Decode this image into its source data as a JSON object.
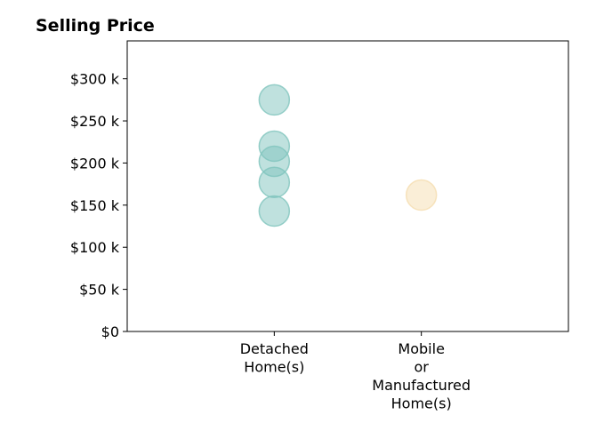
{
  "chart_data": {
    "type": "scatter",
    "title": "Selling Price",
    "xlabel": "",
    "ylabel": "",
    "categories": [
      [
        "Detached",
        "Home(s)"
      ],
      [
        "Mobile",
        "or",
        "Manufactured",
        "Home(s)"
      ]
    ],
    "y_ticks": [
      0,
      50000,
      100000,
      150000,
      200000,
      250000,
      300000
    ],
    "y_tick_labels": [
      "$0",
      "$50 k",
      "$100 k",
      "$150 k",
      "$200 k",
      "$250 k",
      "$300 k"
    ],
    "ylim": [
      0,
      345000
    ],
    "xlim": [
      -1,
      2
    ],
    "grid": false,
    "legend": "none",
    "series": [
      {
        "category_index": 0,
        "color": "#7fc4bd",
        "values": [
          275000,
          220000,
          202000,
          177000,
          143000
        ]
      },
      {
        "category_index": 1,
        "color": "#f5ddb0",
        "values": [
          162000
        ]
      }
    ]
  }
}
